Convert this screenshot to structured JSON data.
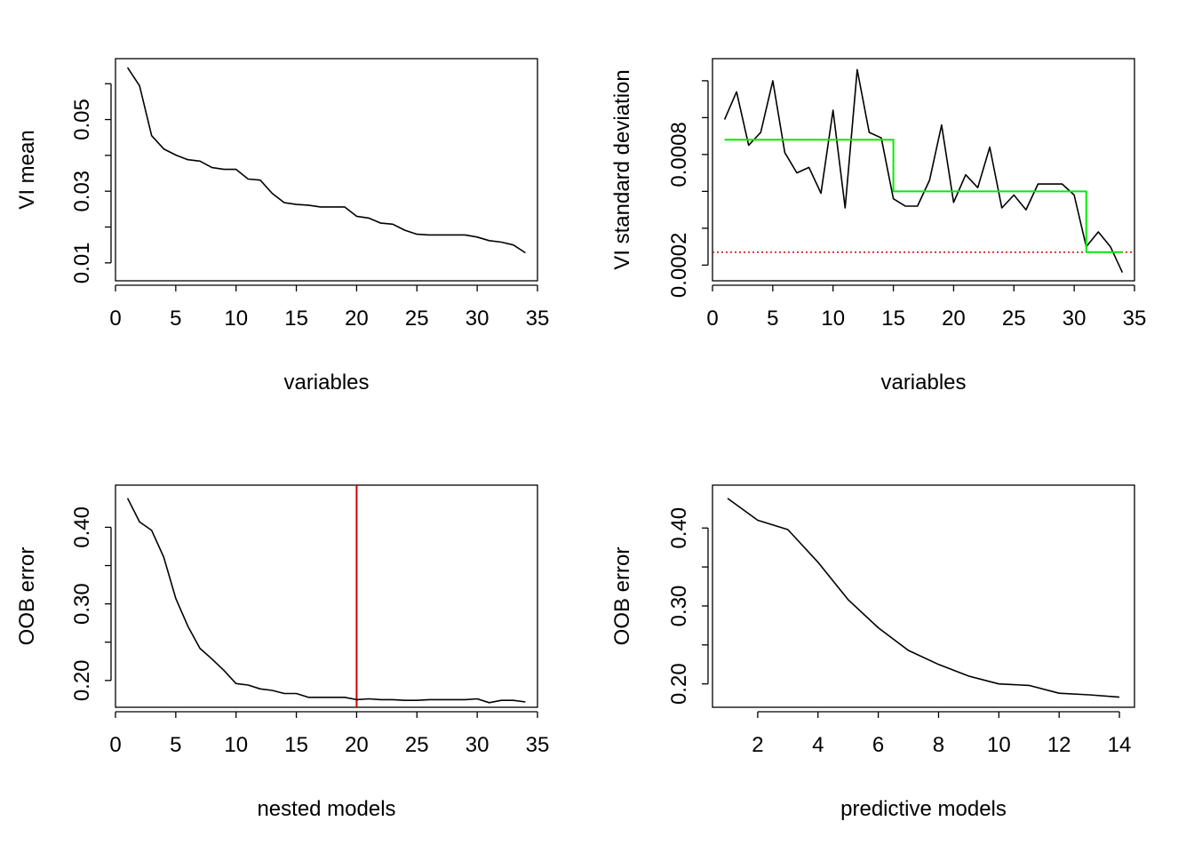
{
  "chart_data": [
    {
      "type": "line",
      "xlabel": "variables",
      "ylabel": "VI mean",
      "xlim": [
        0,
        35
      ],
      "ylim": [
        0.005,
        0.067
      ],
      "xticks": [
        0,
        5,
        10,
        15,
        20,
        25,
        30,
        35
      ],
      "yticks": [
        0.01,
        0.02,
        0.03,
        0.04,
        0.05,
        0.06
      ],
      "ytick_labels": [
        "0.01",
        "",
        "0.03",
        "",
        "0.05",
        ""
      ],
      "series": [
        {
          "color": "#000000",
          "x": [
            1,
            2,
            3,
            4,
            5,
            6,
            7,
            8,
            9,
            10,
            11,
            12,
            13,
            14,
            15,
            16,
            17,
            18,
            19,
            20,
            21,
            22,
            23,
            24,
            25,
            26,
            27,
            28,
            29,
            30,
            31,
            32,
            33,
            34
          ],
          "values": [
            0.0645,
            0.0594,
            0.0455,
            0.0418,
            0.0401,
            0.0388,
            0.0384,
            0.0366,
            0.0361,
            0.0361,
            0.0334,
            0.0331,
            0.0294,
            0.0268,
            0.0263,
            0.0261,
            0.0256,
            0.0256,
            0.0256,
            0.023,
            0.0225,
            0.0211,
            0.0208,
            0.0191,
            0.018,
            0.0178,
            0.0178,
            0.0178,
            0.0178,
            0.0172,
            0.0162,
            0.0158,
            0.015,
            0.0128
          ]
        }
      ]
    },
    {
      "type": "line",
      "xlabel": "variables",
      "ylabel": "VI standard deviation",
      "xlim": [
        0,
        35
      ],
      "ylim": [
        0.000115,
        0.00132
      ],
      "xticks": [
        0,
        5,
        10,
        15,
        20,
        25,
        30,
        35
      ],
      "yticks": [
        0.0002,
        0.0004,
        0.0006,
        0.0008,
        0.001,
        0.0012
      ],
      "ytick_labels": [
        "0.0002",
        "",
        "",
        "0.0008",
        "",
        ""
      ],
      "series": [
        {
          "color": "#000000",
          "x": [
            1,
            2,
            3,
            4,
            5,
            6,
            7,
            8,
            9,
            10,
            11,
            12,
            13,
            14,
            15,
            16,
            17,
            18,
            19,
            20,
            21,
            22,
            23,
            24,
            25,
            26,
            27,
            28,
            29,
            30,
            31,
            32,
            33,
            34
          ],
          "values": [
            0.00099,
            0.00114,
            0.00085,
            0.00092,
            0.0012,
            0.00081,
            0.0007,
            0.00073,
            0.00059,
            0.00104,
            0.00051,
            0.00126,
            0.00092,
            0.00089,
            0.00056,
            0.00052,
            0.00052,
            0.00066,
            0.00096,
            0.00054,
            0.00069,
            0.00062,
            0.00084,
            0.00051,
            0.00058,
            0.0005,
            0.00064,
            0.00064,
            0.00064,
            0.00058,
            0.0003,
            0.00038,
            0.0003,
            0.00016
          ]
        },
        {
          "color": "#00ee00",
          "step": true,
          "x": [
            1,
            15,
            15,
            31,
            31,
            34
          ],
          "values": [
            0.00088,
            0.00088,
            0.0006,
            0.0006,
            0.00027,
            0.00027
          ]
        }
      ],
      "threshold_line": {
        "y": 0.00027,
        "color": "#cc0000",
        "style": "dotted"
      }
    },
    {
      "type": "line",
      "xlabel": "nested models",
      "ylabel": "OOB error",
      "xlim": [
        0,
        35
      ],
      "ylim": [
        0.165,
        0.455
      ],
      "xticks": [
        0,
        5,
        10,
        15,
        20,
        25,
        30,
        35
      ],
      "yticks": [
        0.2,
        0.25,
        0.3,
        0.35,
        0.4
      ],
      "ytick_labels": [
        "0.20",
        "",
        "0.30",
        "",
        "0.40"
      ],
      "series": [
        {
          "color": "#000000",
          "x": [
            1,
            2,
            3,
            4,
            5,
            6,
            7,
            8,
            9,
            10,
            11,
            12,
            13,
            14,
            15,
            16,
            17,
            18,
            19,
            20,
            21,
            22,
            23,
            24,
            25,
            26,
            27,
            28,
            29,
            30,
            31,
            32,
            33,
            34
          ],
          "values": [
            0.438,
            0.407,
            0.396,
            0.361,
            0.307,
            0.271,
            0.242,
            0.228,
            0.213,
            0.196,
            0.194,
            0.189,
            0.187,
            0.183,
            0.183,
            0.178,
            0.178,
            0.178,
            0.178,
            0.175,
            0.176,
            0.175,
            0.175,
            0.174,
            0.174,
            0.175,
            0.175,
            0.175,
            0.175,
            0.176,
            0.171,
            0.174,
            0.174,
            0.172
          ]
        }
      ],
      "threshold_line": {
        "x": 20,
        "color": "#cc0000",
        "style": "solid"
      }
    },
    {
      "type": "line",
      "xlabel": "predictive models",
      "ylabel": "OOB error",
      "xlim": [
        0.5,
        14.5
      ],
      "ylim": [
        0.17,
        0.455
      ],
      "xticks": [
        2,
        4,
        6,
        8,
        10,
        12,
        14
      ],
      "yticks": [
        0.2,
        0.25,
        0.3,
        0.35,
        0.4
      ],
      "ytick_labels": [
        "0.20",
        "",
        "0.30",
        "",
        "0.40"
      ],
      "series": [
        {
          "color": "#000000",
          "x": [
            1,
            2,
            3,
            4,
            5,
            6,
            7,
            8,
            9,
            10,
            11,
            12,
            13,
            14
          ],
          "values": [
            0.438,
            0.41,
            0.398,
            0.356,
            0.308,
            0.272,
            0.243,
            0.225,
            0.21,
            0.2,
            0.198,
            0.188,
            0.186,
            0.183
          ]
        }
      ]
    }
  ]
}
